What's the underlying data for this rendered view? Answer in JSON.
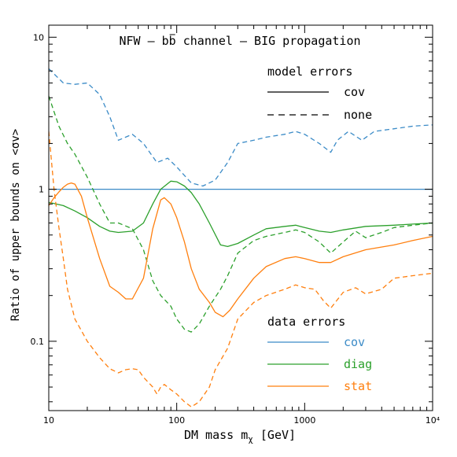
{
  "chart_data": {
    "type": "line",
    "title": "NFW – bb channel – BIG propagation",
    "title_parts": {
      "prefix": "NFW – ",
      "bb": "bb",
      "suffix": " channel – BIG propagation"
    },
    "xlabel": "DM mass m",
    "xlabel_sub": "χ",
    "xlabel_unit": " [GeV]",
    "ylabel": "Ratio of upper bounds on <σv>",
    "xscale": "log",
    "yscale": "log",
    "xlim": [
      10,
      10000
    ],
    "ylim": [
      0.035,
      12
    ],
    "x_ticks": [
      {
        "value": 10,
        "label": "10"
      },
      {
        "value": 100,
        "label": "100"
      },
      {
        "value": 1000,
        "label": "1000"
      },
      {
        "value": 10000,
        "label": "10⁴"
      }
    ],
    "y_ticks": [
      {
        "value": 0.1,
        "label": "0.1"
      },
      {
        "value": 1,
        "label": "1"
      },
      {
        "value": 10,
        "label": "10"
      }
    ],
    "legend_model": {
      "title": "model errors",
      "entries": [
        {
          "label": "cov",
          "style": "solid"
        },
        {
          "label": "none",
          "style": "dashed"
        }
      ]
    },
    "legend_data": {
      "title": "data errors",
      "entries": [
        {
          "label": "cov",
          "color": "#3b8bc7"
        },
        {
          "label": "diag",
          "color": "#2ca02c"
        },
        {
          "label": "stat",
          "color": "#ff7f0e"
        }
      ]
    },
    "series": [
      {
        "color": "#3b8bc7",
        "style": "solid",
        "x": [
          10,
          10000
        ],
        "y": [
          1.0,
          1.0
        ]
      },
      {
        "color": "#3b8bc7",
        "style": "dashed",
        "x": [
          10,
          13,
          16,
          20,
          25,
          30,
          35,
          45,
          55,
          70,
          85,
          100,
          130,
          160,
          200,
          250,
          300,
          400,
          500,
          700,
          850,
          1000,
          1300,
          1600,
          1800,
          2200,
          2800,
          3500,
          5000,
          7000,
          10000
        ],
        "y": [
          6.2,
          5.0,
          4.9,
          5.0,
          4.2,
          3.0,
          2.1,
          2.3,
          2.0,
          1.5,
          1.6,
          1.4,
          1.1,
          1.05,
          1.15,
          1.5,
          2.0,
          2.1,
          2.2,
          2.3,
          2.4,
          2.3,
          2.0,
          1.75,
          2.1,
          2.4,
          2.1,
          2.4,
          2.5,
          2.6,
          2.65
        ]
      },
      {
        "color": "#2ca02c",
        "style": "solid",
        "x": [
          10,
          13,
          16,
          20,
          25,
          30,
          35,
          45,
          55,
          65,
          75,
          90,
          100,
          115,
          130,
          150,
          180,
          220,
          250,
          300,
          400,
          500,
          700,
          850,
          1000,
          1300,
          1600,
          2000,
          3000,
          5000,
          7000,
          10000
        ],
        "y": [
          0.82,
          0.78,
          0.72,
          0.65,
          0.57,
          0.53,
          0.52,
          0.53,
          0.6,
          0.8,
          1.0,
          1.13,
          1.12,
          1.05,
          0.95,
          0.8,
          0.6,
          0.43,
          0.42,
          0.44,
          0.5,
          0.55,
          0.57,
          0.58,
          0.56,
          0.53,
          0.52,
          0.54,
          0.57,
          0.58,
          0.59,
          0.6
        ]
      },
      {
        "color": "#2ca02c",
        "style": "dashed",
        "x": [
          10,
          12,
          14,
          16,
          20,
          25,
          30,
          35,
          45,
          55,
          65,
          75,
          90,
          100,
          115,
          130,
          150,
          180,
          220,
          250,
          300,
          400,
          500,
          700,
          850,
          1000,
          1300,
          1600,
          2000,
          2500,
          3000,
          4000,
          5000,
          7000,
          10000
        ],
        "y": [
          4.1,
          2.6,
          2.0,
          1.7,
          1.2,
          0.8,
          0.6,
          0.6,
          0.55,
          0.4,
          0.25,
          0.2,
          0.17,
          0.14,
          0.12,
          0.115,
          0.13,
          0.17,
          0.22,
          0.27,
          0.38,
          0.46,
          0.49,
          0.52,
          0.54,
          0.52,
          0.45,
          0.38,
          0.45,
          0.53,
          0.48,
          0.52,
          0.56,
          0.58,
          0.6
        ]
      },
      {
        "color": "#ff7f0e",
        "style": "solid",
        "x": [
          10,
          11,
          12,
          13,
          14,
          15,
          16,
          18,
          20,
          25,
          30,
          35,
          40,
          45,
          55,
          65,
          75,
          80,
          90,
          100,
          115,
          130,
          150,
          180,
          200,
          230,
          260,
          300,
          400,
          500,
          700,
          850,
          1000,
          1300,
          1600,
          2000,
          3000,
          5000,
          7000,
          10000
        ],
        "y": [
          0.78,
          0.88,
          0.96,
          1.03,
          1.08,
          1.1,
          1.08,
          0.9,
          0.65,
          0.35,
          0.23,
          0.21,
          0.19,
          0.19,
          0.26,
          0.55,
          0.85,
          0.88,
          0.8,
          0.65,
          0.45,
          0.3,
          0.22,
          0.18,
          0.155,
          0.145,
          0.16,
          0.19,
          0.26,
          0.31,
          0.35,
          0.36,
          0.35,
          0.33,
          0.33,
          0.36,
          0.4,
          0.43,
          0.46,
          0.49
        ]
      },
      {
        "color": "#ff7f0e",
        "style": "dashed",
        "x": [
          10,
          11,
          12,
          13,
          14,
          16,
          20,
          25,
          30,
          35,
          40,
          45,
          50,
          55,
          65,
          70,
          75,
          80,
          90,
          100,
          115,
          130,
          150,
          180,
          200,
          250,
          300,
          400,
          500,
          700,
          850,
          1000,
          1200,
          1400,
          1600,
          2000,
          2500,
          3000,
          4000,
          5000,
          7000,
          10000
        ],
        "y": [
          2.4,
          1.0,
          0.56,
          0.35,
          0.22,
          0.14,
          0.1,
          0.078,
          0.066,
          0.062,
          0.065,
          0.066,
          0.065,
          0.058,
          0.05,
          0.045,
          0.05,
          0.052,
          0.048,
          0.045,
          0.04,
          0.037,
          0.04,
          0.05,
          0.065,
          0.09,
          0.14,
          0.18,
          0.2,
          0.22,
          0.235,
          0.225,
          0.22,
          0.185,
          0.165,
          0.21,
          0.225,
          0.205,
          0.22,
          0.26,
          0.27,
          0.28
        ]
      }
    ]
  }
}
